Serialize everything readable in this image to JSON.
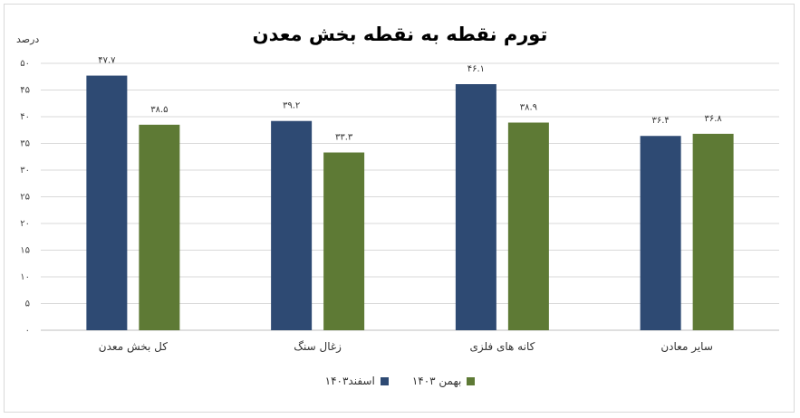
{
  "chart_data": {
    "type": "bar",
    "title": "تورم نقطه به نقطه بخش معدن",
    "ylabel": "درصد",
    "categories": [
      "کل بخش معدن",
      "زغال سنگ",
      "کانه های فلزی",
      "سایر معادن"
    ],
    "ylim": [
      0,
      50
    ],
    "yticks": [
      0,
      5,
      10,
      15,
      20,
      25,
      30,
      35,
      40,
      45,
      50
    ],
    "ytick_labels": [
      "۰",
      "۵",
      "۱۰",
      "۱۵",
      "۲۰",
      "۲۵",
      "۳۰",
      "۳۵",
      "۴۰",
      "۴۵",
      "۵۰"
    ],
    "grid": true,
    "legend_position": "bottom",
    "series": [
      {
        "name": "اسفند۱۴۰۳",
        "color": "#2e4a73",
        "values": [
          47.7,
          39.2,
          46.1,
          36.4
        ],
        "labels": [
          "۴۷.۷",
          "۳۹.۲",
          "۴۶.۱",
          "۳۶.۴"
        ]
      },
      {
        "name": "بهمن ۱۴۰۳",
        "color": "#5e7a35",
        "values": [
          38.5,
          33.3,
          38.9,
          36.8
        ],
        "labels": [
          "۳۸.۵",
          "۳۳.۳",
          "۳۸.۹",
          "۳۶.۸"
        ]
      }
    ]
  }
}
